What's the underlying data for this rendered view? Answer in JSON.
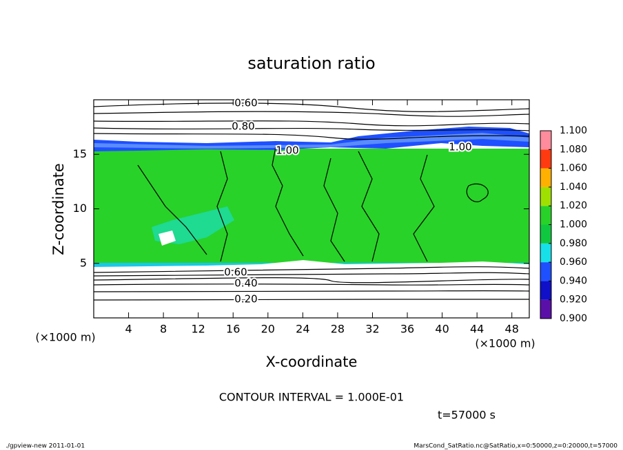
{
  "chart_data": {
    "type": "contour",
    "title": "saturation ratio",
    "xlabel": "X-coordinate",
    "ylabel": "Z-coordinate",
    "unit_label": "(×1000 m)",
    "xlim": [
      0,
      50
    ],
    "xticks": [
      4,
      8,
      12,
      16,
      20,
      24,
      28,
      32,
      36,
      40,
      44,
      48
    ],
    "ylim": [
      0,
      20
    ],
    "yticks": [
      5,
      10,
      15
    ],
    "colorbar": {
      "levels": [
        {
          "value": 0.9,
          "label": "0.900"
        },
        {
          "value": 0.92,
          "label": "0.920"
        },
        {
          "value": 0.94,
          "label": "0.940"
        },
        {
          "value": 0.96,
          "label": "0.960"
        },
        {
          "value": 0.98,
          "label": "0.980"
        },
        {
          "value": 1.0,
          "label": "1.000"
        },
        {
          "value": 1.02,
          "label": "1.020"
        },
        {
          "value": 1.04,
          "label": "1.040"
        },
        {
          "value": 1.06,
          "label": "1.060"
        },
        {
          "value": 1.08,
          "label": "1.080"
        },
        {
          "value": 1.1,
          "label": "1.100"
        }
      ],
      "colors": [
        "#5a10a8",
        "#1010c8",
        "#1e50ff",
        "#18e0e8",
        "#10c840",
        "#28d228",
        "#a0e000",
        "#ffb000",
        "#ff3a10",
        "#ff8c9c"
      ]
    },
    "contour_labels": [
      {
        "value": 0.6,
        "label": "0.60"
      },
      {
        "value": 0.8,
        "label": "0.80"
      },
      {
        "value": 1.0,
        "label": "1.00"
      },
      {
        "value": 1.0,
        "label": "1.00"
      },
      {
        "value": 0.6,
        "label": "0.60"
      },
      {
        "value": 0.4,
        "label": "0.40"
      },
      {
        "value": 0.2,
        "label": "0.20"
      }
    ],
    "contour_interval": "CONTOUR INTERVAL = 1.000E-01",
    "time": "t=57000 s",
    "footer_left": "./gpview-new  2011-01-01",
    "footer_right": "MarsCond_SatRatio.nc@SatRatio,x=0:50000,z=0:20000,t=57000"
  }
}
